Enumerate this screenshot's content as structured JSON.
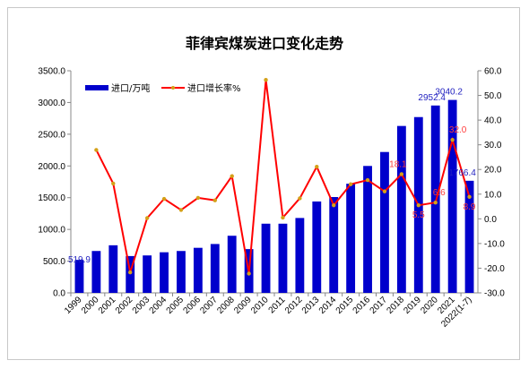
{
  "chart_data": {
    "type": "bar+line",
    "title": "菲律宾煤炭进口变化走势",
    "categories": [
      "1999",
      "2000",
      "2001",
      "2002",
      "2003",
      "2004",
      "2005",
      "2006",
      "2007",
      "2008",
      "2009",
      "2010",
      "2011",
      "2012",
      "2013",
      "2014",
      "2015",
      "2016",
      "2017",
      "2018",
      "2019",
      "2020",
      "2021",
      "2022(1-7)"
    ],
    "series": [
      {
        "name": "进口/万吨",
        "type": "bar",
        "axis": "left",
        "color": "#0000cc",
        "values": [
          519.9,
          660,
          750,
          580,
          590,
          640,
          660,
          710,
          770,
          900,
          690,
          1090,
          1090,
          1180,
          1440,
          1510,
          1720,
          2000,
          2220,
          2630,
          2770,
          2952.4,
          3040.2,
          1766.4
        ]
      },
      {
        "name": "进口增长率%",
        "type": "line",
        "axis": "right",
        "color": "#ff0000",
        "marker_color": "#d4a017",
        "values": [
          null,
          27.9,
          14.3,
          -21.7,
          0.3,
          8.1,
          3.6,
          8.5,
          7.5,
          17.3,
          -22.2,
          56.3,
          0.5,
          8.3,
          21.1,
          5.5,
          14.0,
          15.7,
          11.1,
          18.1,
          5.5,
          6.6,
          32.0,
          8.9
        ]
      }
    ],
    "data_labels": {
      "bars": {
        "0": "519.9",
        "21": "2952.4",
        "22": "3040.2",
        "23": "1766.4"
      },
      "line": {
        "19": "18.1",
        "20": "5.5",
        "21": "6.6",
        "22": "32.0",
        "23": "8.9"
      }
    },
    "ylim_left": [
      0,
      3500
    ],
    "yticks_left": [
      "0.0",
      "500.0",
      "1000.0",
      "1500.0",
      "2000.0",
      "2500.0",
      "3000.0",
      "3500.0"
    ],
    "ylim_right": [
      -30,
      60
    ],
    "yticks_right": [
      "-30.0",
      "-20.0",
      "-10.0",
      "0.0",
      "10.0",
      "20.0",
      "30.0",
      "40.0",
      "50.0",
      "60.0"
    ],
    "legend_position": "top-left",
    "grid": false
  }
}
